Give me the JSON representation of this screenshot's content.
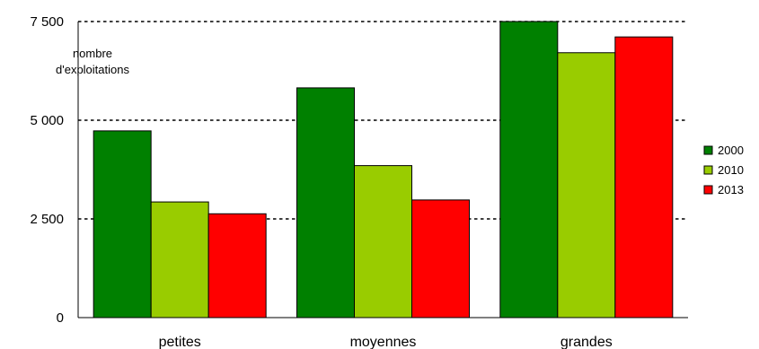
{
  "chart_data": {
    "type": "bar",
    "title": "",
    "xlabel": "",
    "ylabel_lines": [
      "nombre",
      "d'exploitations"
    ],
    "categories": [
      "petites",
      "moyennes",
      "grandes"
    ],
    "series": [
      {
        "name": "2000",
        "color": "#008000",
        "values": [
          4730,
          5820,
          7500
        ]
      },
      {
        "name": "2010",
        "color": "#99cc00",
        "values": [
          2930,
          3850,
          6710
        ]
      },
      {
        "name": "2013",
        "color": "#ff0000",
        "values": [
          2630,
          2980,
          7110
        ]
      }
    ],
    "ylim": [
      0,
      7500
    ],
    "yticks": [
      {
        "value": 0,
        "label": "0"
      },
      {
        "value": 2500,
        "label": "2 500"
      },
      {
        "value": 5000,
        "label": "5 000"
      },
      {
        "value": 7500,
        "label": "7 500"
      }
    ],
    "grid": "dashed at labeled ticks",
    "legend_position": "right"
  }
}
